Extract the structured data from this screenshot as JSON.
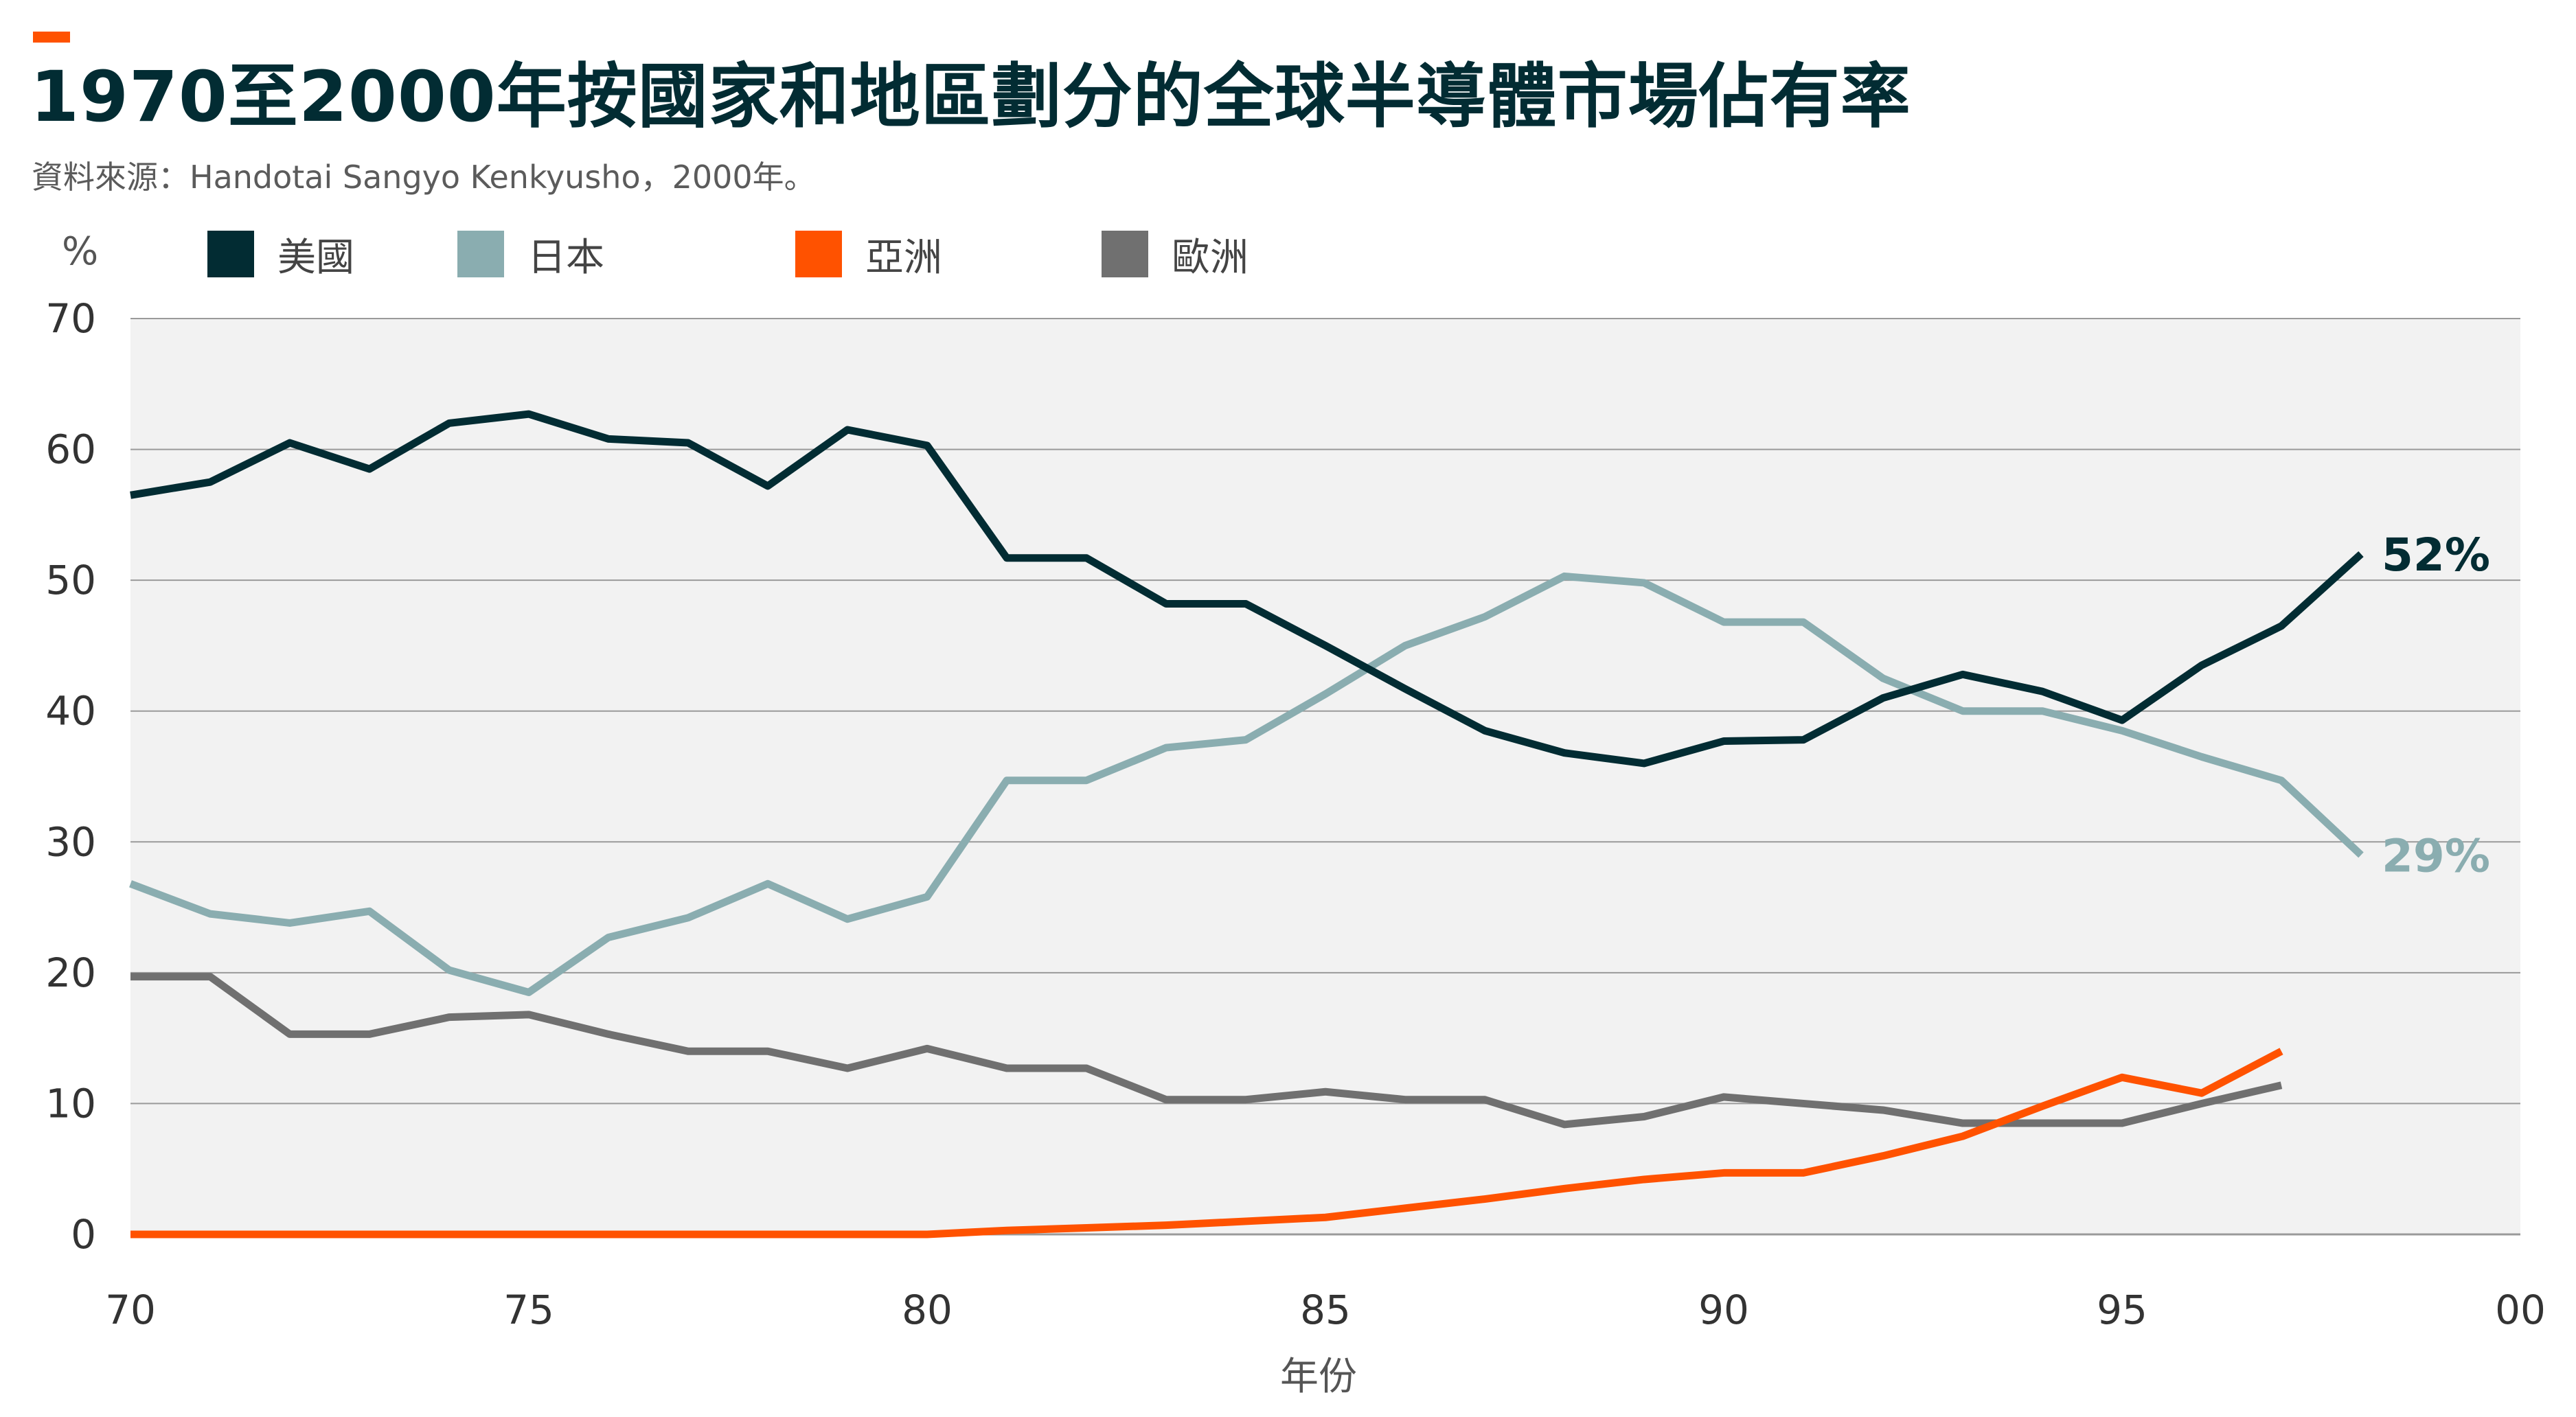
{
  "title": "1970至2000年按國家和地區劃分的全球半導體市場佔有率",
  "subtitle": "資料來源：Handotai Sangyo Kenkyusho，2000年。",
  "colors": {
    "accent": "#ff5200",
    "plot_bg": "#f2f2f2",
    "grid": "#9a9a9a"
  },
  "chart_data": {
    "type": "line",
    "ylabel": "%",
    "xlabel": "年份",
    "xlim": [
      1970,
      2000
    ],
    "ylim": [
      0,
      70
    ],
    "yticks": [
      0,
      10,
      20,
      30,
      40,
      50,
      60,
      70
    ],
    "xticks": [
      1970,
      1975,
      1980,
      1985,
      1990,
      1995,
      2000
    ],
    "xtick_labels": [
      "70",
      "75",
      "80",
      "85",
      "90",
      "95",
      "00"
    ],
    "grid": "horizontal",
    "legend": "top",
    "series": [
      {
        "name": "美國",
        "color": "#022c33",
        "end_label": "52%",
        "points": [
          [
            1970,
            56.5
          ],
          [
            1971,
            57.5
          ],
          [
            1972,
            60.5
          ],
          [
            1973,
            58.5
          ],
          [
            1974,
            62
          ],
          [
            1975,
            62.7
          ],
          [
            1976,
            60.8
          ],
          [
            1977,
            60.5
          ],
          [
            1978,
            57.2
          ],
          [
            1979,
            61.5
          ],
          [
            1980,
            60.3
          ],
          [
            1981,
            51.7
          ],
          [
            1982,
            51.7
          ],
          [
            1983,
            48.2
          ],
          [
            1984,
            48.2
          ],
          [
            1985,
            45
          ],
          [
            1986,
            41.7
          ],
          [
            1987,
            38.5
          ],
          [
            1988,
            36.8
          ],
          [
            1989,
            36
          ],
          [
            1990,
            37.7
          ],
          [
            1991,
            37.8
          ],
          [
            1992,
            41
          ],
          [
            1993,
            42.8
          ],
          [
            1994,
            41.5
          ],
          [
            1995,
            39.3
          ],
          [
            1996,
            43.5
          ],
          [
            1997,
            46.5
          ],
          [
            1998,
            52
          ]
        ]
      },
      {
        "name": "日本",
        "color": "#8aadb0",
        "end_label": "29%",
        "points": [
          [
            1970,
            26.8
          ],
          [
            1971,
            24.5
          ],
          [
            1972,
            23.8
          ],
          [
            1973,
            24.7
          ],
          [
            1974,
            20.2
          ],
          [
            1975,
            18.5
          ],
          [
            1976,
            22.7
          ],
          [
            1977,
            24.2
          ],
          [
            1978,
            26.8
          ],
          [
            1979,
            24.1
          ],
          [
            1980,
            25.8
          ],
          [
            1981,
            34.7
          ],
          [
            1982,
            34.7
          ],
          [
            1983,
            37.2
          ],
          [
            1984,
            37.8
          ],
          [
            1985,
            41.3
          ],
          [
            1986,
            45
          ],
          [
            1987,
            47.2
          ],
          [
            1988,
            50.3
          ],
          [
            1989,
            49.8
          ],
          [
            1990,
            46.8
          ],
          [
            1991,
            46.8
          ],
          [
            1992,
            42.5
          ],
          [
            1993,
            40
          ],
          [
            1994,
            40
          ],
          [
            1995,
            38.5
          ],
          [
            1996,
            36.5
          ],
          [
            1997,
            34.7
          ],
          [
            1998,
            29
          ]
        ]
      },
      {
        "name": "亞洲",
        "color": "#ff5200",
        "points": [
          [
            1970,
            0
          ],
          [
            1971,
            0
          ],
          [
            1972,
            0
          ],
          [
            1973,
            0
          ],
          [
            1974,
            0
          ],
          [
            1975,
            0
          ],
          [
            1976,
            0
          ],
          [
            1977,
            0
          ],
          [
            1978,
            0
          ],
          [
            1979,
            0
          ],
          [
            1980,
            0
          ],
          [
            1981,
            0.3
          ],
          [
            1982,
            0.5
          ],
          [
            1983,
            0.7
          ],
          [
            1984,
            1
          ],
          [
            1985,
            1.3
          ],
          [
            1986,
            2
          ],
          [
            1987,
            2.7
          ],
          [
            1988,
            3.5
          ],
          [
            1989,
            4.2
          ],
          [
            1990,
            4.7
          ],
          [
            1991,
            4.7
          ],
          [
            1992,
            6
          ],
          [
            1993,
            7.5
          ],
          [
            1994,
            9.8
          ],
          [
            1995,
            12
          ],
          [
            1996,
            10.8
          ],
          [
            1997,
            14
          ]
        ]
      },
      {
        "name": "歐洲",
        "color": "#707070",
        "points": [
          [
            1970,
            19.7
          ],
          [
            1971,
            19.7
          ],
          [
            1972,
            15.3
          ],
          [
            1973,
            15.3
          ],
          [
            1974,
            16.6
          ],
          [
            1975,
            16.8
          ],
          [
            1976,
            15.3
          ],
          [
            1977,
            14
          ],
          [
            1978,
            14
          ],
          [
            1979,
            12.7
          ],
          [
            1980,
            14.2
          ],
          [
            1981,
            12.7
          ],
          [
            1982,
            12.7
          ],
          [
            1983,
            10.3
          ],
          [
            1984,
            10.3
          ],
          [
            1985,
            10.9
          ],
          [
            1986,
            10.3
          ],
          [
            1987,
            10.3
          ],
          [
            1988,
            8.4
          ],
          [
            1989,
            9
          ],
          [
            1990,
            10.5
          ],
          [
            1991,
            10
          ],
          [
            1992,
            9.5
          ],
          [
            1993,
            8.5
          ],
          [
            1994,
            8.5
          ],
          [
            1995,
            8.5
          ],
          [
            1996,
            10
          ],
          [
            1997,
            11.4
          ]
        ]
      }
    ]
  }
}
